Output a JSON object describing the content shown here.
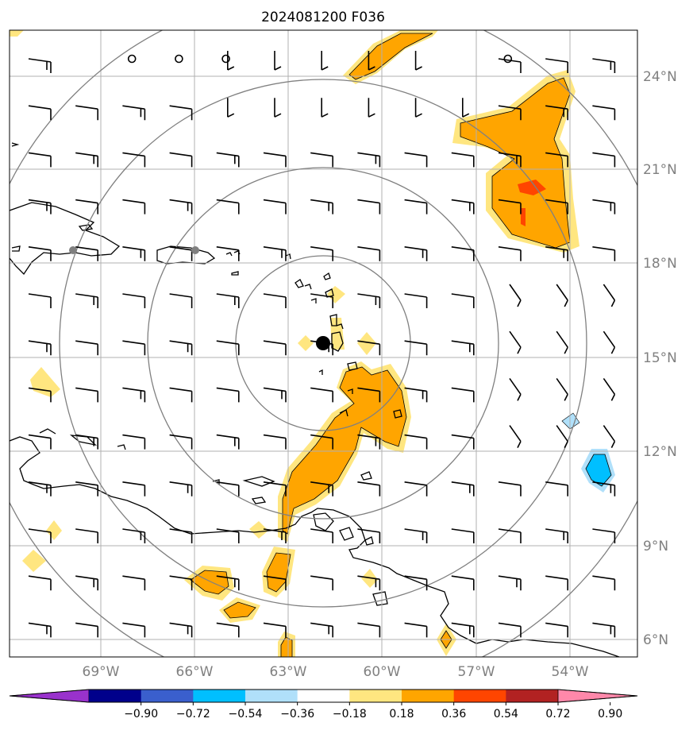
{
  "title": "2024081200 F036",
  "lat_labels": [
    "24°N",
    "21°N",
    "18°N",
    "15°N",
    "12°N",
    "9°N",
    "6°N"
  ],
  "lon_labels": [
    "69°W",
    "66°W",
    "63°W",
    "60°W",
    "57°W",
    "54°W"
  ],
  "colorbar": {
    "tick_labels": [
      "−0.90",
      "−0.72",
      "−0.54",
      "−0.36",
      "−0.18",
      "0.18",
      "0.36",
      "0.54",
      "0.72",
      "0.90"
    ],
    "colors": [
      "#9932cc",
      "#00008b",
      "#3a5fcd",
      "#00bfff",
      "#b0e0fa",
      "#ffffff",
      "#ffe680",
      "#ffa500",
      "#ff4500",
      "#b22222",
      "#ff88aa"
    ]
  },
  "colors": {
    "land_outline": "#000000",
    "range_rings": "#808080",
    "gridlines": "#b0b0b0",
    "center_marker": "#000000",
    "city_marker": "#808080"
  }
}
